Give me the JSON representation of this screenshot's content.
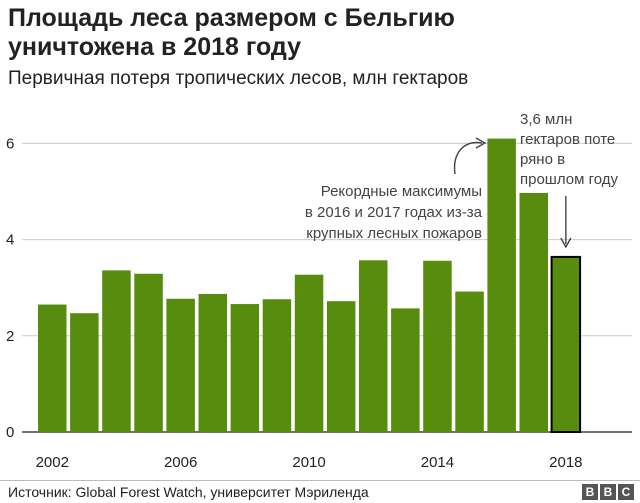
{
  "header": {
    "title_line1": "Площадь леса размером с Бельгию",
    "title_line2": "уничтожена в 2018 году",
    "subtitle": "Первичная потеря тропических лесов, млн гектаров"
  },
  "chart_data": {
    "type": "bar",
    "title": "Площадь леса размером с Бельгию уничтожена в 2018 году",
    "subtitle": "Первичная потеря тропических лесов, млн гектаров",
    "categories": [
      "2002",
      "2003",
      "2004",
      "2005",
      "2006",
      "2007",
      "2008",
      "2009",
      "2010",
      "2011",
      "2012",
      "2013",
      "2014",
      "2015",
      "2016",
      "2017",
      "2018"
    ],
    "values": [
      2.65,
      2.47,
      3.36,
      3.29,
      2.77,
      2.87,
      2.66,
      2.76,
      3.27,
      2.72,
      3.57,
      2.57,
      3.56,
      2.92,
      6.1,
      4.97,
      3.64
    ],
    "x_tick_labels": [
      "2002",
      "2006",
      "2010",
      "2014",
      "2018"
    ],
    "y_ticks": [
      0,
      2,
      4,
      6
    ],
    "ylim": [
      0,
      6.6
    ],
    "grid": true,
    "highlight_category": "2018",
    "bar_color": "#588c0e",
    "highlight_outline_color": "#000000",
    "annotations": {
      "fires": [
        "Рекордные максимумы",
        "в 2016 и 2017 годах из-за",
        "крупных лесных пожаров"
      ],
      "loss_2018": [
        "3,6 млн",
        "гектаров поте",
        "ряно в",
        "прошлом году"
      ]
    }
  },
  "footer": {
    "source": "Источник: Global Forest Watch, университет Мэриленда",
    "brand_letters": [
      "B",
      "B",
      "C"
    ]
  }
}
